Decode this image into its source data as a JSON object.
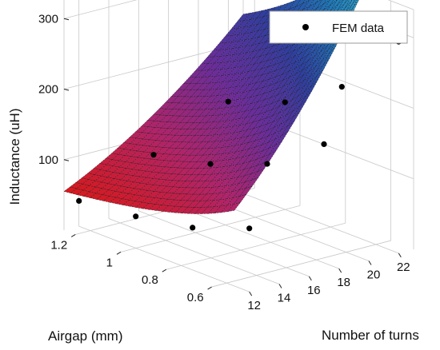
{
  "chart_data": {
    "type": "surface3d",
    "x": {
      "label": "Airgap (mm)",
      "ticks": [
        0.6,
        0.8,
        1,
        1.2
      ],
      "tick_labels": [
        "0.6",
        "0.8",
        "1",
        "1.2"
      ],
      "range": [
        0.5,
        1.25
      ]
    },
    "y": {
      "label": "Number of turns",
      "ticks": [
        12,
        14,
        16,
        18,
        20,
        22
      ],
      "tick_labels": [
        "12",
        "14",
        "16",
        "18",
        "20",
        "22"
      ],
      "range": [
        11,
        23
      ]
    },
    "z": {
      "label": "Inductance (uH)",
      "ticks": [
        100,
        200,
        300
      ],
      "tick_labels": [
        "100",
        "200",
        "300"
      ],
      "range": [
        0,
        340
      ]
    },
    "grid": true,
    "legend": {
      "position": "top-right",
      "entries": [
        {
          "label": "FEM data",
          "marker": "dot",
          "color": "#000000"
        }
      ]
    },
    "colormap": [
      "#d7191c",
      "#b0246a",
      "#6a2d9a",
      "#2e3f9e",
      "#1f79b8",
      "#33b0d8",
      "#74c3a0",
      "#c4d22e"
    ],
    "fem_points": [
      {
        "airgap": 0.5,
        "turns": 12,
        "inductance": 90
      },
      {
        "airgap": 0.75,
        "turns": 12,
        "inductance": 60
      },
      {
        "airgap": 1.0,
        "turns": 12,
        "inductance": 45
      },
      {
        "airgap": 1.25,
        "turns": 12,
        "inductance": 36
      },
      {
        "airgap": 0.5,
        "turns": 17,
        "inductance": 182
      },
      {
        "airgap": 0.75,
        "turns": 17,
        "inductance": 123
      },
      {
        "airgap": 1.0,
        "turns": 17,
        "inductance": 92
      },
      {
        "airgap": 1.25,
        "turns": 17,
        "inductance": 74
      },
      {
        "airgap": 0.5,
        "turns": 22,
        "inductance": 300
      },
      {
        "airgap": 0.75,
        "turns": 22,
        "inductance": 205
      },
      {
        "airgap": 1.0,
        "turns": 22,
        "inductance": 152
      },
      {
        "airgap": 1.25,
        "turns": 22,
        "inductance": 122
      }
    ]
  }
}
